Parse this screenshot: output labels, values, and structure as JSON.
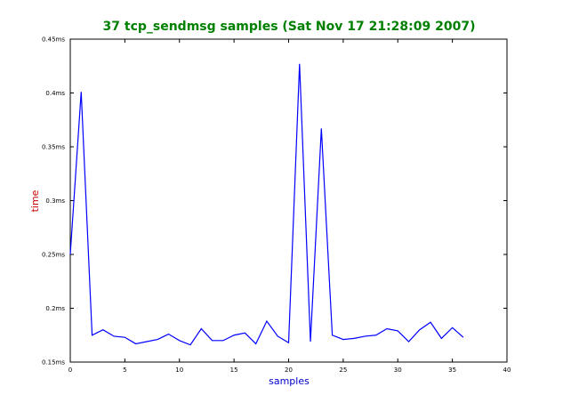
{
  "chart_data": {
    "type": "line",
    "title": "37 tcp_sendmsg samples (Sat Nov 17 21:28:09 2007)",
    "xlabel": "samples",
    "ylabel": "time",
    "xlim": [
      0,
      40
    ],
    "ylim": [
      0.15,
      0.45
    ],
    "x_ticks": [
      0,
      5,
      10,
      15,
      20,
      25,
      30,
      35,
      40
    ],
    "x_tick_labels": [
      "0",
      "5",
      "10",
      "15",
      "20",
      "25",
      "30",
      "35",
      "40"
    ],
    "y_ticks": [
      0.15,
      0.2,
      0.25,
      0.3,
      0.35,
      0.4,
      0.45
    ],
    "y_tick_labels": [
      "0.15ms",
      "0.2ms",
      "0.25ms",
      "0.3ms",
      "0.35ms",
      "0.4ms",
      "0.45ms"
    ],
    "grid": false,
    "legend": "none",
    "colors": {
      "title": "#008000",
      "xlabel": "#0000cc",
      "ylabel": "#cc0000",
      "line": "#0000ff"
    },
    "series": [
      {
        "x": [
          0,
          1,
          2,
          3,
          4,
          5,
          6,
          7,
          8,
          9,
          10,
          11,
          12,
          13,
          14,
          15,
          16,
          17,
          18,
          19,
          20,
          21,
          22,
          23,
          24,
          25,
          26,
          27,
          28,
          29,
          30,
          31,
          32,
          33,
          34,
          35,
          36
        ],
        "values": [
          0.25,
          0.401,
          0.175,
          0.18,
          0.174,
          0.173,
          0.167,
          0.169,
          0.171,
          0.176,
          0.17,
          0.166,
          0.181,
          0.17,
          0.17,
          0.175,
          0.177,
          0.167,
          0.188,
          0.174,
          0.168,
          0.427,
          0.169,
          0.367,
          0.175,
          0.171,
          0.172,
          0.174,
          0.175,
          0.181,
          0.179,
          0.169,
          0.18,
          0.187,
          0.172,
          0.182,
          0.173
        ]
      }
    ]
  }
}
